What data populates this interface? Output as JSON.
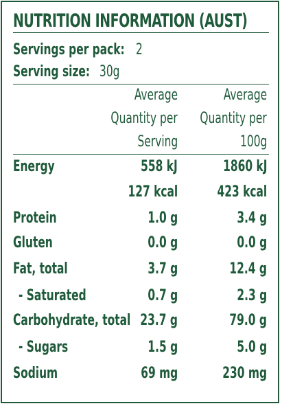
{
  "title": "NUTRITION INFORMATION (AUST)",
  "servings_per_pack": {
    "label": "Servings per pack:",
    "value": "2"
  },
  "serving_size": {
    "label": "Serving size:",
    "value": "30g"
  },
  "columns": {
    "per_serving": [
      "Average",
      "Quantity per",
      "Serving"
    ],
    "per_100g": [
      "Average",
      "Quantity per",
      "100g"
    ]
  },
  "rows": [
    {
      "name": "Energy",
      "serving": "558 kJ",
      "per100": "1860 kJ"
    },
    {
      "name": "",
      "serving": "127 kcal",
      "per100": "423 kcal"
    },
    {
      "name": "Protein",
      "serving": "1.0 g",
      "per100": "3.4 g"
    },
    {
      "name": "Gluten",
      "serving": "0.0 g",
      "per100": "0.0 g"
    },
    {
      "name": "Fat, total",
      "serving": "3.7 g",
      "per100": "12.4 g"
    },
    {
      "name": "- Saturated",
      "serving": "0.7 g",
      "per100": "2.3 g"
    },
    {
      "name": "Carbohydrate, total",
      "serving": "23.7 g",
      "per100": "79.0 g"
    },
    {
      "name": "- Sugars",
      "serving": "1.5 g",
      "per100": "5.0 g"
    },
    {
      "name": "Sodium",
      "serving": "69 mg",
      "per100": "230 mg"
    }
  ],
  "colors": {
    "ink": "#1f5a3a",
    "background": "#ffffff"
  }
}
